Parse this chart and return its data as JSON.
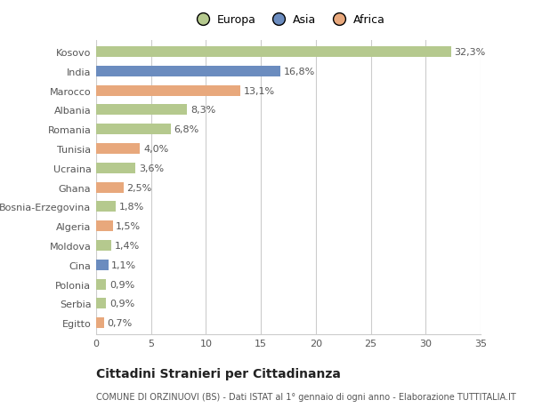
{
  "countries": [
    "Kosovo",
    "India",
    "Marocco",
    "Albania",
    "Romania",
    "Tunisia",
    "Ucraina",
    "Ghana",
    "Bosnia-Erzegovina",
    "Algeria",
    "Moldova",
    "Cina",
    "Polonia",
    "Serbia",
    "Egitto"
  ],
  "values": [
    32.3,
    16.8,
    13.1,
    8.3,
    6.8,
    4.0,
    3.6,
    2.5,
    1.8,
    1.5,
    1.4,
    1.1,
    0.9,
    0.9,
    0.7
  ],
  "labels": [
    "32,3%",
    "16,8%",
    "13,1%",
    "8,3%",
    "6,8%",
    "4,0%",
    "3,6%",
    "2,5%",
    "1,8%",
    "1,5%",
    "1,4%",
    "1,1%",
    "0,9%",
    "0,9%",
    "0,7%"
  ],
  "continents": [
    "Europa",
    "Asia",
    "Africa",
    "Europa",
    "Europa",
    "Africa",
    "Europa",
    "Africa",
    "Europa",
    "Africa",
    "Europa",
    "Asia",
    "Europa",
    "Europa",
    "Africa"
  ],
  "colors": {
    "Europa": "#b5c98e",
    "Asia": "#6b8cbf",
    "Africa": "#e8a87c"
  },
  "xlim": [
    0,
    35
  ],
  "xticks": [
    0,
    5,
    10,
    15,
    20,
    25,
    30,
    35
  ],
  "title": "Cittadini Stranieri per Cittadinanza",
  "subtitle": "COMUNE DI ORZINUOVI (BS) - Dati ISTAT al 1° gennaio di ogni anno - Elaborazione TUTTITALIA.IT",
  "background_color": "#ffffff",
  "grid_color": "#cccccc",
  "bar_height": 0.55,
  "label_fontsize": 8,
  "tick_fontsize": 8,
  "title_fontsize": 10,
  "subtitle_fontsize": 7
}
